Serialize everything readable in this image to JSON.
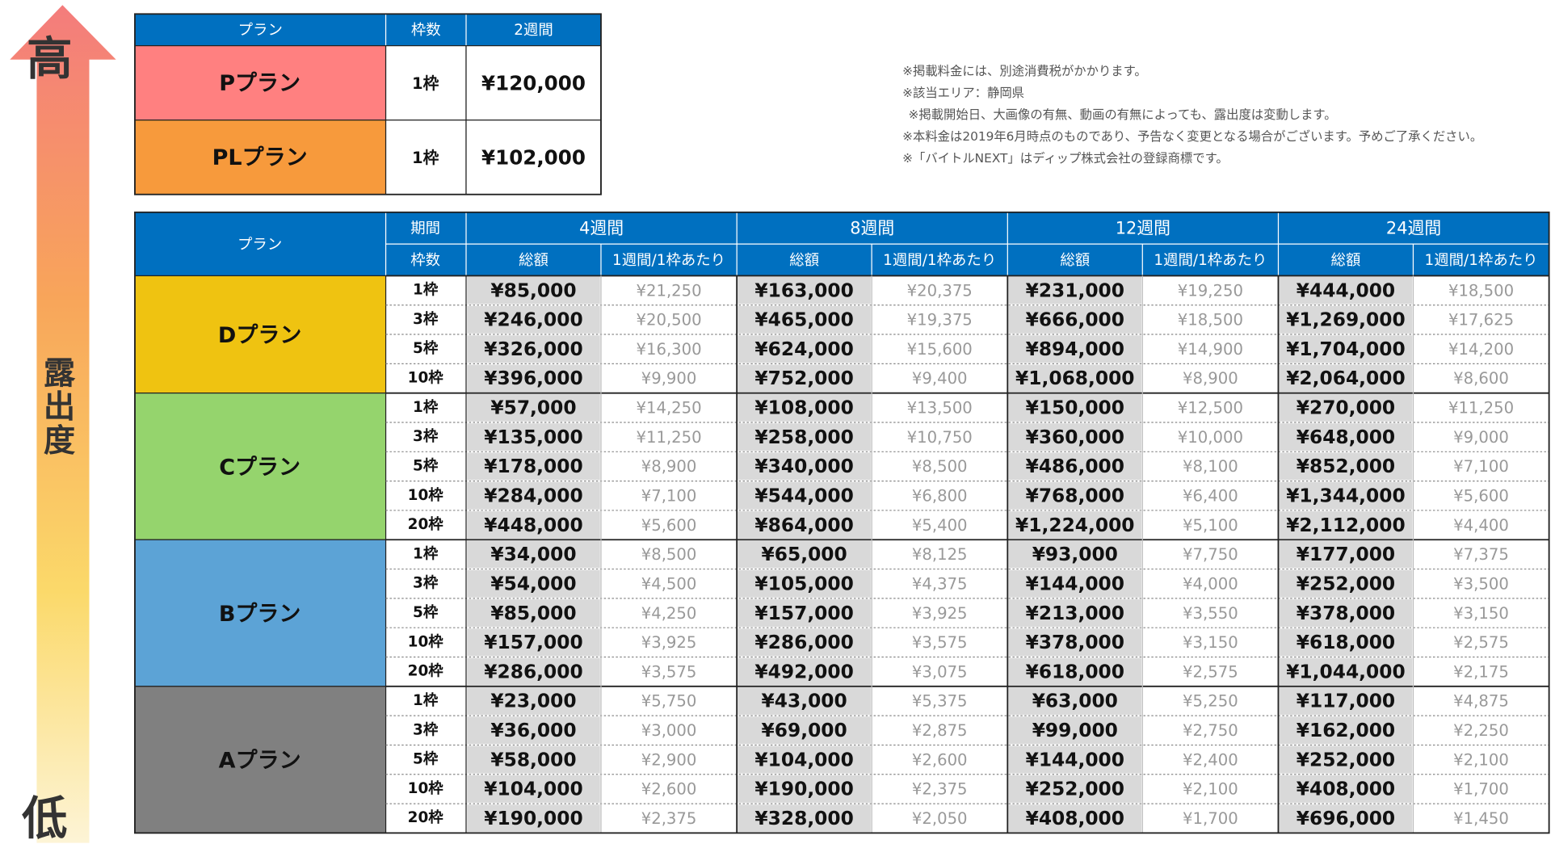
{
  "indicator": {
    "high": "高",
    "label": "露出度",
    "low": "低"
  },
  "top_table": {
    "headers": [
      "プラン",
      "枠数",
      "2週間"
    ],
    "rows": [
      [
        "Pプラン",
        "1枠",
        "¥120,000"
      ],
      [
        "PLプラン",
        "1枠",
        "¥102,000"
      ]
    ]
  },
  "notes": [
    "※掲載料金には、別途消費税がかかります。",
    "※該当エリア：静岡県",
    "※掲載開始日、大画像の有無、動画の有無によっても、露出度は変動します。",
    "※本料金は2019年6月時点のものであり、予告なく変更となる場合がございます。予めご了承ください。",
    "※「バイトルNEXT」はディップ株式会社の登録商標です。"
  ],
  "main_table": {
    "plan_header": "プラン",
    "period_header": "期間",
    "slots_header": "枠数",
    "periods": [
      "4週間",
      "8週間",
      "12週間",
      "24週間"
    ],
    "sub_headers": [
      "総額",
      "1週間/1枠あたり"
    ],
    "plans": [
      {
        "name": "Dプラン",
        "rows": [
          {
            "slots": "1枠",
            "cells": [
              "¥85,000",
              "¥21,250",
              "¥163,000",
              "¥20,375",
              "¥231,000",
              "¥19,250",
              "¥444,000",
              "¥18,500"
            ]
          },
          {
            "slots": "3枠",
            "cells": [
              "¥246,000",
              "¥20,500",
              "¥465,000",
              "¥19,375",
              "¥666,000",
              "¥18,500",
              "¥1,269,000",
              "¥17,625"
            ]
          },
          {
            "slots": "5枠",
            "cells": [
              "¥326,000",
              "¥16,300",
              "¥624,000",
              "¥15,600",
              "¥894,000",
              "¥14,900",
              "¥1,704,000",
              "¥14,200"
            ]
          },
          {
            "slots": "10枠",
            "cells": [
              "¥396,000",
              "¥9,900",
              "¥752,000",
              "¥9,400",
              "¥1,068,000",
              "¥8,900",
              "¥2,064,000",
              "¥8,600"
            ]
          }
        ]
      },
      {
        "name": "Cプラン",
        "rows": [
          {
            "slots": "1枠",
            "cells": [
              "¥57,000",
              "¥14,250",
              "¥108,000",
              "¥13,500",
              "¥150,000",
              "¥12,500",
              "¥270,000",
              "¥11,250"
            ]
          },
          {
            "slots": "3枠",
            "cells": [
              "¥135,000",
              "¥11,250",
              "¥258,000",
              "¥10,750",
              "¥360,000",
              "¥10,000",
              "¥648,000",
              "¥9,000"
            ]
          },
          {
            "slots": "5枠",
            "cells": [
              "¥178,000",
              "¥8,900",
              "¥340,000",
              "¥8,500",
              "¥486,000",
              "¥8,100",
              "¥852,000",
              "¥7,100"
            ]
          },
          {
            "slots": "10枠",
            "cells": [
              "¥284,000",
              "¥7,100",
              "¥544,000",
              "¥6,800",
              "¥768,000",
              "¥6,400",
              "¥1,344,000",
              "¥5,600"
            ]
          },
          {
            "slots": "20枠",
            "cells": [
              "¥448,000",
              "¥5,600",
              "¥864,000",
              "¥5,400",
              "¥1,224,000",
              "¥5,100",
              "¥2,112,000",
              "¥4,400"
            ]
          }
        ]
      },
      {
        "name": "Bプラン",
        "rows": [
          {
            "slots": "1枠",
            "cells": [
              "¥34,000",
              "¥8,500",
              "¥65,000",
              "¥8,125",
              "¥93,000",
              "¥7,750",
              "¥177,000",
              "¥7,375"
            ]
          },
          {
            "slots": "3枠",
            "cells": [
              "¥54,000",
              "¥4,500",
              "¥105,000",
              "¥4,375",
              "¥144,000",
              "¥4,000",
              "¥252,000",
              "¥3,500"
            ]
          },
          {
            "slots": "5枠",
            "cells": [
              "¥85,000",
              "¥4,250",
              "¥157,000",
              "¥3,925",
              "¥213,000",
              "¥3,550",
              "¥378,000",
              "¥3,150"
            ]
          },
          {
            "slots": "10枠",
            "cells": [
              "¥157,000",
              "¥3,925",
              "¥286,000",
              "¥3,575",
              "¥378,000",
              "¥3,150",
              "¥618,000",
              "¥2,575"
            ]
          },
          {
            "slots": "20枠",
            "cells": [
              "¥286,000",
              "¥3,575",
              "¥492,000",
              "¥3,075",
              "¥618,000",
              "¥2,575",
              "¥1,044,000",
              "¥2,175"
            ]
          }
        ]
      },
      {
        "name": "Aプラン",
        "rows": [
          {
            "slots": "1枠",
            "cells": [
              "¥23,000",
              "¥5,750",
              "¥43,000",
              "¥5,375",
              "¥63,000",
              "¥5,250",
              "¥117,000",
              "¥4,875"
            ]
          },
          {
            "slots": "3枠",
            "cells": [
              "¥36,000",
              "¥3,000",
              "¥69,000",
              "¥2,875",
              "¥99,000",
              "¥2,750",
              "¥162,000",
              "¥2,250"
            ]
          },
          {
            "slots": "5枠",
            "cells": [
              "¥58,000",
              "¥2,900",
              "¥104,000",
              "¥2,600",
              "¥144,000",
              "¥2,400",
              "¥252,000",
              "¥2,100"
            ]
          },
          {
            "slots": "10枠",
            "cells": [
              "¥104,000",
              "¥2,600",
              "¥190,000",
              "¥2,375",
              "¥252,000",
              "¥2,100",
              "¥408,000",
              "¥1,700"
            ]
          },
          {
            "slots": "20枠",
            "cells": [
              "¥190,000",
              "¥2,375",
              "¥328,000",
              "¥2,050",
              "¥408,000",
              "¥1,700",
              "¥696,000",
              "¥1,450"
            ]
          }
        ]
      }
    ]
  }
}
